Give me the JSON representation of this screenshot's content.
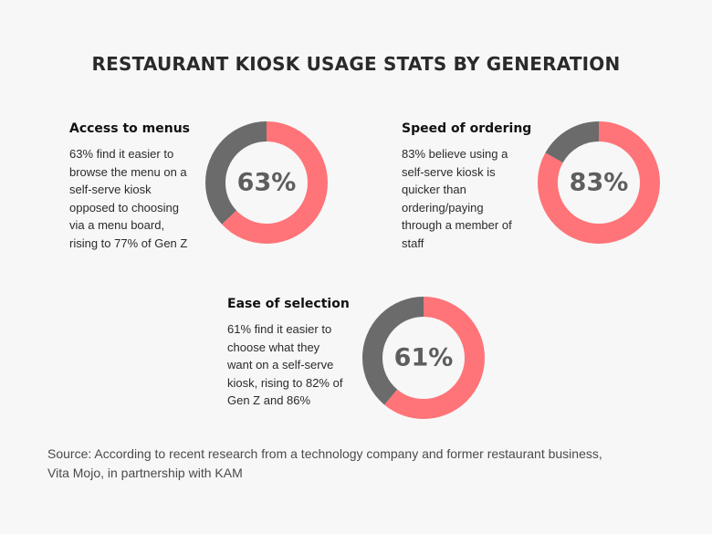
{
  "title": "RESTAURANT KIOSK USAGE STATS BY GENERATION",
  "stats": [
    {
      "heading": "Access to menus",
      "lines": [
        "63% find it easier to",
        "browse the menu on a",
        "self-serve kiosk",
        "opposed to choosing",
        "via a menu board,",
        "rising to 77% of Gen Z"
      ],
      "label": "63%"
    },
    {
      "heading": "Speed of ordering",
      "lines": [
        "83% believe using a",
        "self-serve kiosk is",
        "quicker than",
        "ordering/paying",
        "through a member of",
        "staff"
      ],
      "label": "83%"
    },
    {
      "heading": "Ease of selection",
      "lines": [
        "61% find it easier to",
        "choose what they",
        "want on a self-serve",
        "kiosk, rising to 82% of",
        "Gen Z and 86%"
      ],
      "label": "61%"
    }
  ],
  "source": {
    "line1": "Source: According to recent research from a technology company and former restaurant business,",
    "line2": "Vita Mojo, in partnership with KAM"
  },
  "colors": {
    "accent": "#ff7478",
    "remainder": "#6b6b6b",
    "background": "#f7f7f7"
  },
  "chart_data": [
    {
      "type": "pie",
      "style": "donut",
      "label": "63%",
      "values": [
        63,
        37
      ],
      "colors": [
        "#ff7478",
        "#6b6b6b"
      ]
    },
    {
      "type": "pie",
      "style": "donut",
      "label": "83%",
      "values": [
        83,
        17
      ],
      "colors": [
        "#ff7478",
        "#6b6b6b"
      ]
    },
    {
      "type": "pie",
      "style": "donut",
      "label": "61%",
      "values": [
        61,
        39
      ],
      "colors": [
        "#ff7478",
        "#6b6b6b"
      ]
    }
  ]
}
